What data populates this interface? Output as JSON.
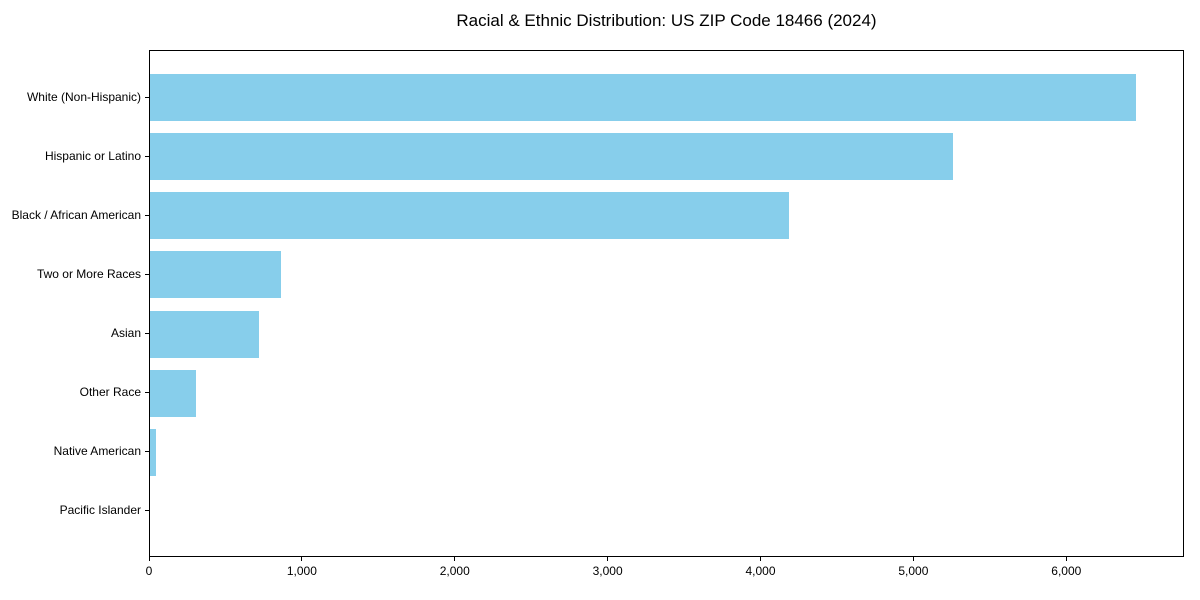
{
  "chart_data": {
    "type": "bar",
    "orientation": "horizontal",
    "title": "Racial & Ethnic Distribution: US ZIP Code 18466 (2024)",
    "categories": [
      "White (Non-Hispanic)",
      "Hispanic or Latino",
      "Black / African American",
      "Two or More Races",
      "Asian",
      "Other Race",
      "Native American",
      "Pacific Islander"
    ],
    "values": [
      6450,
      5250,
      4180,
      860,
      715,
      300,
      40,
      0
    ],
    "xlabel": "",
    "ylabel": "",
    "xlim": [
      0,
      6770
    ],
    "xtick_values": [
      0,
      1000,
      2000,
      3000,
      4000,
      5000,
      6000
    ],
    "xtick_labels": [
      "0",
      "1,000",
      "2,000",
      "3,000",
      "4,000",
      "5,000",
      "6,000"
    ],
    "bar_color": "#87CEEB",
    "grid": false,
    "legend_position": "none"
  }
}
